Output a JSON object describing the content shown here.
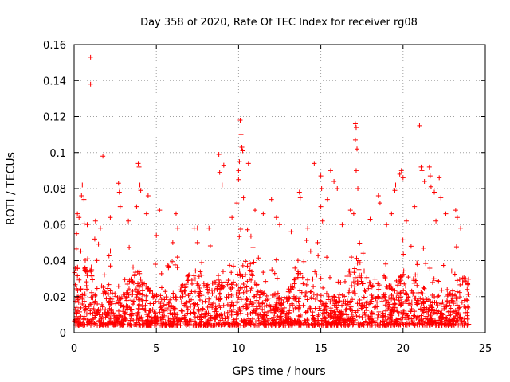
{
  "chart_data": {
    "type": "scatter",
    "title": "Day 358 of 2020, Rate Of TEC Index for receiver rg08",
    "xlabel": "GPS time / hours",
    "ylabel": "ROTI / TECUs",
    "xlim": [
      0,
      25
    ],
    "ylim": [
      0,
      0.16
    ],
    "x_ticks": [
      "0",
      "5",
      "10",
      "15",
      "20",
      "25"
    ],
    "y_ticks": [
      "0",
      "0.02",
      "0.04",
      "0.06",
      "0.08",
      "0.1",
      "0.12",
      "0.14",
      "0.16"
    ],
    "grid": true,
    "marker": "plus",
    "colors": {
      "points": "#ff0000"
    },
    "series": [
      {
        "values": [
          [
            1.0,
            0.153
          ],
          [
            1.0,
            0.138
          ],
          [
            1.75,
            0.098
          ],
          [
            0.5,
            0.082
          ],
          [
            0.45,
            0.076
          ],
          [
            0.6,
            0.074
          ],
          [
            0.2,
            0.066
          ],
          [
            0.3,
            0.064
          ],
          [
            0.8,
            0.06
          ],
          [
            0.15,
            0.055
          ],
          [
            1.3,
            0.062
          ],
          [
            1.6,
            0.058
          ],
          [
            2.2,
            0.064
          ],
          [
            2.7,
            0.083
          ],
          [
            2.75,
            0.078
          ],
          [
            2.8,
            0.07
          ],
          [
            3.3,
            0.062
          ],
          [
            3.9,
            0.094
          ],
          [
            3.95,
            0.092
          ],
          [
            4.0,
            0.082
          ],
          [
            4.05,
            0.079
          ],
          [
            3.8,
            0.07
          ],
          [
            4.5,
            0.076
          ],
          [
            4.4,
            0.066
          ],
          [
            5.2,
            0.068
          ],
          [
            5.0,
            0.054
          ],
          [
            6.2,
            0.066
          ],
          [
            6.3,
            0.058
          ],
          [
            6.0,
            0.05
          ],
          [
            7.3,
            0.058
          ],
          [
            7.5,
            0.05
          ],
          [
            8.2,
            0.058
          ],
          [
            8.8,
            0.099
          ],
          [
            8.85,
            0.089
          ],
          [
            9.1,
            0.093
          ],
          [
            9.0,
            0.082
          ],
          [
            9.6,
            0.064
          ],
          [
            9.9,
            0.072
          ],
          [
            10.0,
            0.085
          ],
          [
            10.05,
            0.095
          ],
          [
            10.1,
            0.118
          ],
          [
            10.15,
            0.11
          ],
          [
            10.2,
            0.103
          ],
          [
            10.0,
            0.09
          ],
          [
            10.25,
            0.101
          ],
          [
            10.6,
            0.094
          ],
          [
            10.3,
            0.075
          ],
          [
            11.0,
            0.068
          ],
          [
            11.5,
            0.066
          ],
          [
            12.0,
            0.074
          ],
          [
            12.3,
            0.064
          ],
          [
            12.5,
            0.06
          ],
          [
            13.2,
            0.056
          ],
          [
            13.7,
            0.078
          ],
          [
            13.75,
            0.075
          ],
          [
            14.2,
            0.058
          ],
          [
            14.6,
            0.094
          ],
          [
            15.0,
            0.087
          ],
          [
            15.05,
            0.08
          ],
          [
            15.0,
            0.07
          ],
          [
            15.1,
            0.062
          ],
          [
            14.8,
            0.05
          ],
          [
            15.4,
            0.074
          ],
          [
            15.6,
            0.09
          ],
          [
            15.8,
            0.084
          ],
          [
            16.0,
            0.08
          ],
          [
            16.3,
            0.06
          ],
          [
            16.8,
            0.068
          ],
          [
            17.1,
            0.116
          ],
          [
            17.15,
            0.114
          ],
          [
            17.1,
            0.107
          ],
          [
            17.2,
            0.102
          ],
          [
            17.15,
            0.09
          ],
          [
            17.25,
            0.08
          ],
          [
            17.0,
            0.066
          ],
          [
            18.0,
            0.063
          ],
          [
            18.5,
            0.076
          ],
          [
            18.6,
            0.072
          ],
          [
            19.0,
            0.06
          ],
          [
            19.5,
            0.079
          ],
          [
            19.55,
            0.082
          ],
          [
            19.3,
            0.066
          ],
          [
            19.8,
            0.088
          ],
          [
            19.9,
            0.09
          ],
          [
            20.0,
            0.086
          ],
          [
            20.2,
            0.062
          ],
          [
            20.7,
            0.07
          ],
          [
            21.0,
            0.115
          ],
          [
            21.1,
            0.092
          ],
          [
            21.15,
            0.09
          ],
          [
            21.3,
            0.084
          ],
          [
            21.6,
            0.092
          ],
          [
            21.65,
            0.087
          ],
          [
            21.7,
            0.081
          ],
          [
            21.9,
            0.078
          ],
          [
            22.2,
            0.086
          ],
          [
            22.3,
            0.075
          ],
          [
            22.0,
            0.062
          ],
          [
            22.6,
            0.066
          ],
          [
            23.2,
            0.068
          ],
          [
            23.3,
            0.064
          ],
          [
            23.5,
            0.058
          ],
          [
            23.8,
            0.03
          ],
          [
            23.9,
            0.024
          ]
        ]
      }
    ]
  }
}
